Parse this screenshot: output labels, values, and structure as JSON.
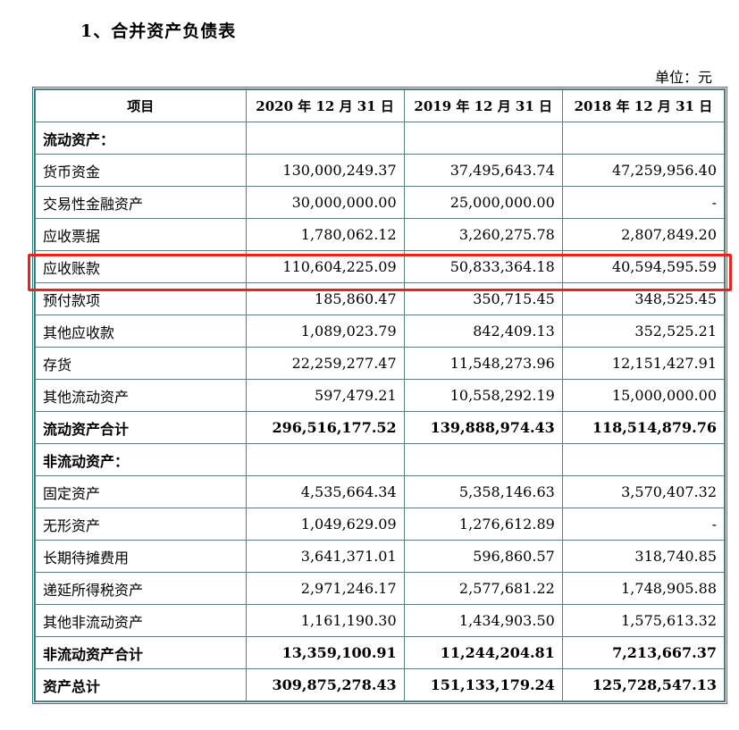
{
  "heading": "1、合并资产负债表",
  "unit": "单位：元",
  "highlight_color": "#e8231e",
  "table": {
    "headers": [
      "项目",
      "2020 年 12 月 31 日",
      "2019 年 12 月 31 日",
      "2018 年 12 月 31 日"
    ],
    "rows": [
      {
        "label": "流动资产：",
        "values": [
          "",
          "",
          ""
        ],
        "type": "section"
      },
      {
        "label": "货币资金",
        "values": [
          "130,000,249.37",
          "37,495,643.74",
          "47,259,956.40"
        ],
        "type": "normal"
      },
      {
        "label": "交易性金融资产",
        "values": [
          "30,000,000.00",
          "25,000,000.00",
          "-"
        ],
        "type": "normal"
      },
      {
        "label": "应收票据",
        "values": [
          "1,780,062.12",
          "3,260,275.78",
          "2,807,849.20"
        ],
        "type": "normal"
      },
      {
        "label": "应收账款",
        "values": [
          "110,604,225.09",
          "50,833,364.18",
          "40,594,595.59"
        ],
        "type": "highlight"
      },
      {
        "label": "预付款项",
        "values": [
          "185,860.47",
          "350,715.45",
          "348,525.45"
        ],
        "type": "normal"
      },
      {
        "label": "其他应收款",
        "values": [
          "1,089,023.79",
          "842,409.13",
          "352,525.21"
        ],
        "type": "normal"
      },
      {
        "label": "存货",
        "values": [
          "22,259,277.47",
          "11,548,273.96",
          "12,151,427.91"
        ],
        "type": "normal"
      },
      {
        "label": "其他流动资产",
        "values": [
          "597,479.21",
          "10,558,292.19",
          "15,000,000.00"
        ],
        "type": "normal"
      },
      {
        "label": "流动资产合计",
        "values": [
          "296,516,177.52",
          "139,888,974.43",
          "118,514,879.76"
        ],
        "type": "bold"
      },
      {
        "label": "非流动资产：",
        "values": [
          "",
          "",
          ""
        ],
        "type": "section"
      },
      {
        "label": "固定资产",
        "values": [
          "4,535,664.34",
          "5,358,146.63",
          "3,570,407.32"
        ],
        "type": "normal"
      },
      {
        "label": "无形资产",
        "values": [
          "1,049,629.09",
          "1,276,612.89",
          "-"
        ],
        "type": "normal"
      },
      {
        "label": "长期待摊费用",
        "values": [
          "3,641,371.01",
          "596,860.57",
          "318,740.85"
        ],
        "type": "normal"
      },
      {
        "label": "递延所得税资产",
        "values": [
          "2,971,246.17",
          "2,577,681.22",
          "1,748,905.88"
        ],
        "type": "normal"
      },
      {
        "label": "其他非流动资产",
        "values": [
          "1,161,190.30",
          "1,434,903.50",
          "1,575,613.32"
        ],
        "type": "normal"
      },
      {
        "label": "非流动资产合计",
        "values": [
          "13,359,100.91",
          "11,244,204.81",
          "7,213,667.37"
        ],
        "type": "bold"
      },
      {
        "label": "资产总计",
        "values": [
          "309,875,278.43",
          "151,133,179.24",
          "125,728,547.13"
        ],
        "type": "bold"
      }
    ]
  }
}
